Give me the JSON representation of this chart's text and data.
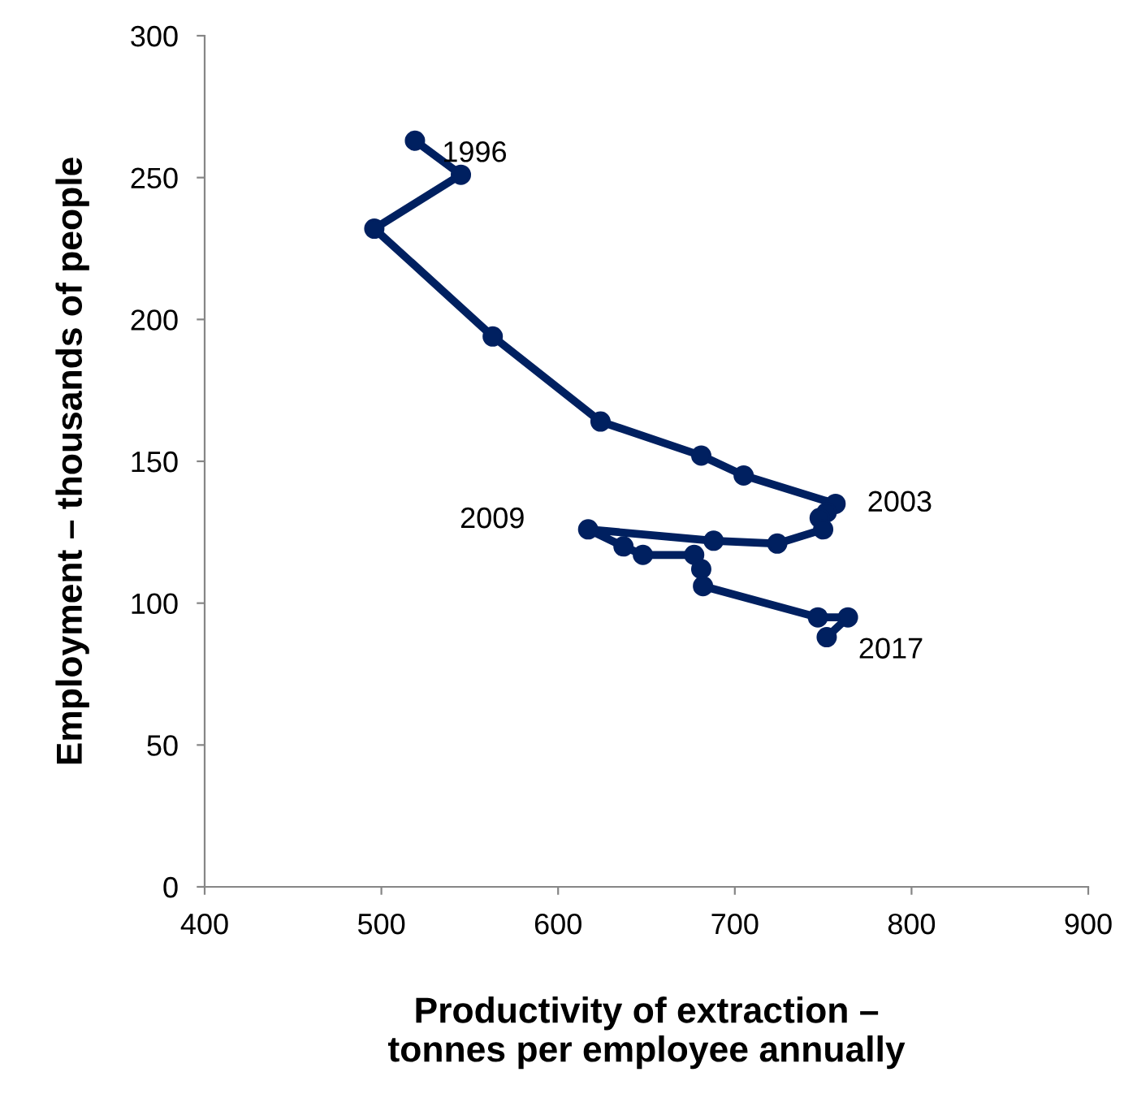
{
  "chart_data": {
    "type": "line",
    "xlabel": "Productivity of extraction –\ntonnes per employee annually",
    "ylabel": "Employment – thousands of people",
    "xlim": [
      400,
      900
    ],
    "xticks": [
      400,
      500,
      600,
      700,
      800,
      900
    ],
    "ylim": [
      0,
      300
    ],
    "yticks": [
      0,
      50,
      100,
      150,
      200,
      250,
      300
    ],
    "grid": false,
    "marker": "circle",
    "line_style": "solid",
    "series": [
      {
        "color": "#002060",
        "x": [
          519,
          545,
          496,
          563,
          624,
          681,
          705,
          757,
          752,
          748,
          750,
          724,
          688,
          617,
          637,
          648,
          677,
          681,
          682,
          747,
          764,
          752
        ],
        "values": [
          263,
          251,
          232,
          194,
          164,
          152,
          145,
          135,
          132,
          130,
          126,
          121,
          122,
          126,
          120,
          117,
          117,
          112,
          106,
          95,
          95,
          88
        ]
      }
    ],
    "annotations": [
      {
        "text": "1996",
        "x": 519,
        "y": 263
      },
      {
        "text": "2003",
        "x": 757,
        "y": 135
      },
      {
        "text": "2009",
        "x": 617,
        "y": 126
      },
      {
        "text": "2017",
        "x": 752,
        "y": 88
      }
    ]
  }
}
